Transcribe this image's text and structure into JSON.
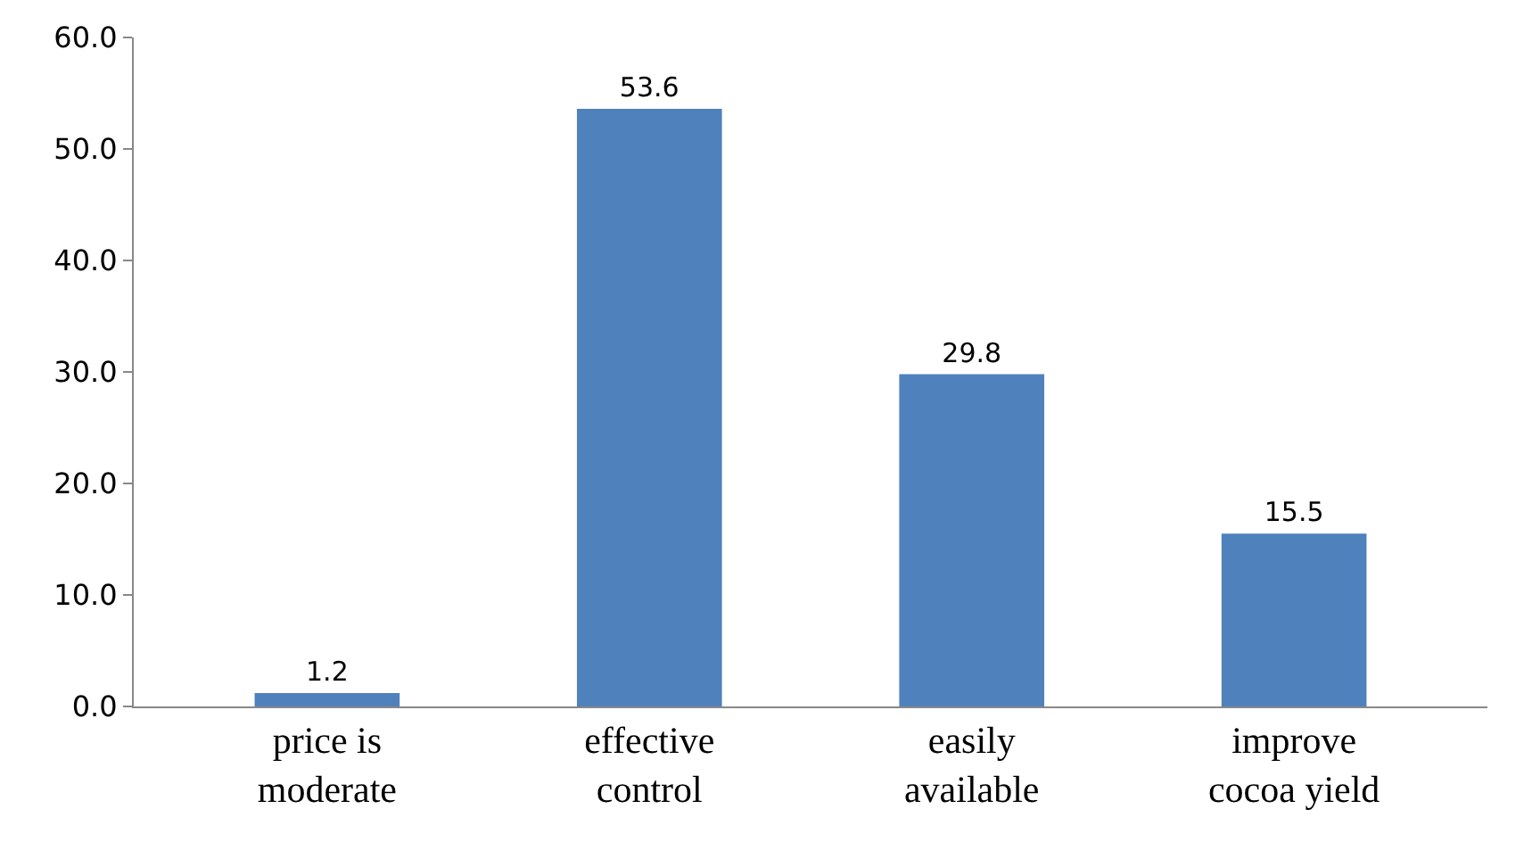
{
  "chart_data": {
    "type": "bar",
    "categories": [
      "price is moderate",
      "effective control",
      "easily available",
      "improve cocoa yield"
    ],
    "values": [
      1.2,
      53.6,
      29.8,
      15.5
    ],
    "color": "#4f81bd",
    "ylim": [
      0,
      60
    ],
    "yticks": [
      {
        "value": 0,
        "label": "0.0"
      },
      {
        "value": 10,
        "label": "10.0"
      },
      {
        "value": 20,
        "label": "20.0"
      },
      {
        "value": 30,
        "label": "30.0"
      },
      {
        "value": 40,
        "label": "40.0"
      },
      {
        "value": 50,
        "label": "50.0"
      },
      {
        "value": 60,
        "label": "60.0"
      }
    ],
    "data_labels": true
  }
}
